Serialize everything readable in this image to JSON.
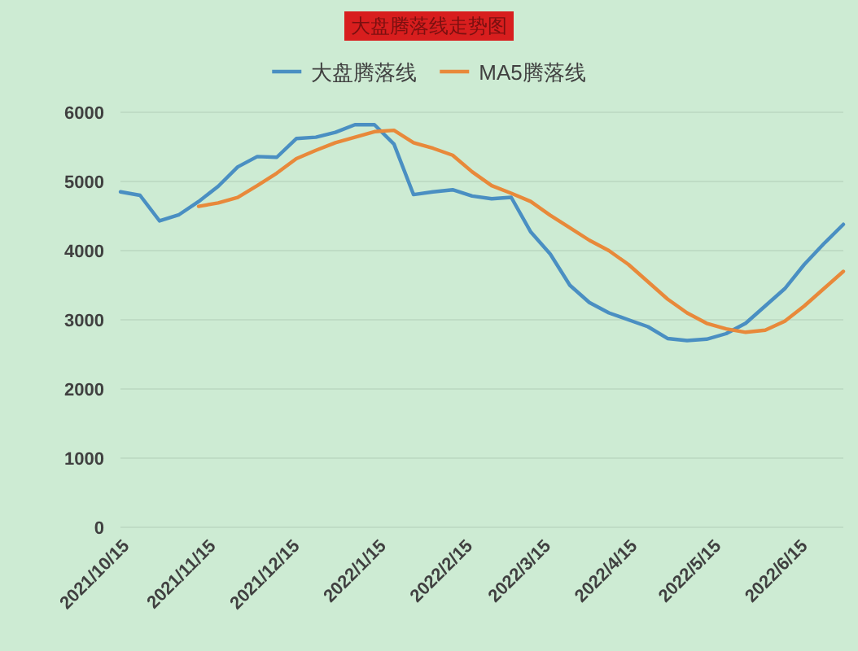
{
  "chart_data": {
    "type": "line",
    "title": "大盘腾落线走势图",
    "x": [
      "2021-10-15",
      "2021-10-22",
      "2021-10-29",
      "2021-11-05",
      "2021-11-12",
      "2021-11-19",
      "2021-11-26",
      "2021-12-03",
      "2021-12-10",
      "2021-12-17",
      "2021-12-24",
      "2021-12-31",
      "2022-01-07",
      "2022-01-14",
      "2022-01-21",
      "2022-01-28",
      "2022-02-04",
      "2022-02-11",
      "2022-02-18",
      "2022-02-25",
      "2022-03-04",
      "2022-03-11",
      "2022-03-18",
      "2022-03-25",
      "2022-04-01",
      "2022-04-08",
      "2022-04-15",
      "2022-04-22",
      "2022-04-29",
      "2022-05-06",
      "2022-05-13",
      "2022-05-20",
      "2022-05-27",
      "2022-06-03",
      "2022-06-10",
      "2022-06-17",
      "2022-06-24",
      "2022-07-01"
    ],
    "series": [
      {
        "name": "大盘腾落线",
        "color": "#4a8fc2",
        "values": [
          4850,
          4800,
          4430,
          4520,
          4710,
          4930,
          5210,
          5360,
          5350,
          5620,
          5640,
          5710,
          5820,
          5820,
          5540,
          4810,
          4850,
          4880,
          4790,
          4750,
          4770,
          4270,
          3950,
          3500,
          3250,
          3100,
          3000,
          2900,
          2730,
          2700,
          2720,
          2800,
          2950,
          3200,
          3450,
          3800,
          4100,
          4380
        ]
      },
      {
        "name": "MA5腾落线",
        "color": "#e8893a",
        "values": [
          null,
          null,
          null,
          null,
          4640,
          4690,
          4770,
          4940,
          5120,
          5330,
          5450,
          5560,
          5640,
          5720,
          5740,
          5560,
          5480,
          5380,
          5140,
          4940,
          4830,
          4710,
          4510,
          4330,
          4150,
          4000,
          3800,
          3550,
          3300,
          3100,
          2950,
          2870,
          2820,
          2850,
          2980,
          3200,
          3450,
          3700
        ]
      }
    ],
    "xlim": [
      "2021-10-15",
      "2022-07-01"
    ],
    "xticks": [
      {
        "value": "2021-10-15",
        "label": "2021/10/15"
      },
      {
        "value": "2021-11-15",
        "label": "2021/11/15"
      },
      {
        "value": "2021-12-15",
        "label": "2021/12/15"
      },
      {
        "value": "2022-01-15",
        "label": "2022/1/15"
      },
      {
        "value": "2022-02-15",
        "label": "2022/2/15"
      },
      {
        "value": "2022-03-15",
        "label": "2022/3/15"
      },
      {
        "value": "2022-04-15",
        "label": "2022/4/15"
      },
      {
        "value": "2022-05-15",
        "label": "2022/5/15"
      },
      {
        "value": "2022-06-15",
        "label": "2022/6/15"
      }
    ],
    "ylim": [
      0,
      6000
    ],
    "yticks": [
      0,
      1000,
      2000,
      3000,
      4000,
      5000,
      6000
    ],
    "grid": "y",
    "legend": "top",
    "marker": "none",
    "line_style": "solid"
  }
}
